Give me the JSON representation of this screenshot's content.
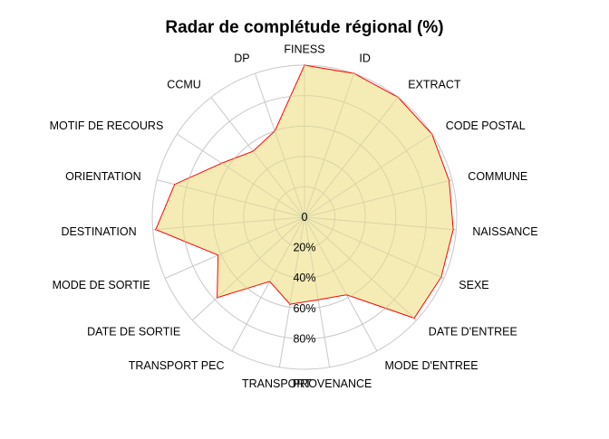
{
  "chart_data": {
    "type": "radar",
    "title": "Radar de complétude régional (%)",
    "rlim": [
      0,
      100
    ],
    "radial_ticks": [
      "0",
      "20%",
      "40%",
      "60%",
      "80%"
    ],
    "radial_tick_values": [
      0,
      20,
      40,
      60,
      80
    ],
    "ring_values": [
      20,
      40,
      60,
      80,
      100
    ],
    "fill_color": "#f5ecb5",
    "line_color": "#ff0000",
    "grid_color": "#c8c8c8",
    "categories": [
      "FINESS",
      "ID",
      "EXTRACT",
      "CODE POSTAL",
      "COMMUNE",
      "NAISSANCE",
      "SEXE",
      "DATE D'ENTREE",
      "MODE D'ENTREE",
      "PROVENANCE",
      "TRANSPORT",
      "TRANSPORT PEC",
      "DATE DE SORTIE",
      "MODE DE SORTIE",
      "DESTINATION",
      "ORIENTATION",
      "MOTIF DE RECOURS",
      "CCMU",
      "DP"
    ],
    "values": [
      100,
      100,
      100,
      100,
      98,
      98,
      98,
      98,
      58,
      55,
      58,
      48,
      78,
      62,
      98,
      88,
      65,
      55,
      60
    ]
  }
}
